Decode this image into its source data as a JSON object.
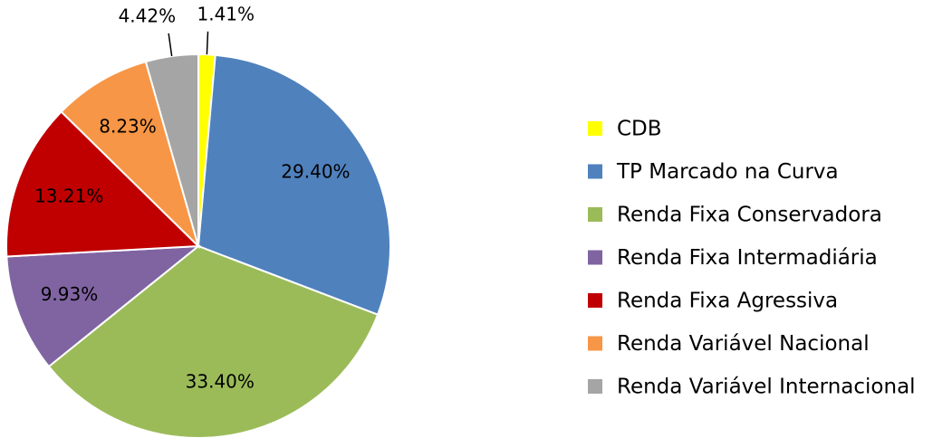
{
  "chart_data": {
    "type": "pie",
    "categories": [
      "CDB",
      "TP Marcado na Curva",
      "Renda Fixa Conservadora",
      "Renda Fixa Intermadiária",
      "Renda Fixa Agressiva",
      "Renda Variável Nacional",
      "Renda Variável Internacional"
    ],
    "values": [
      1.41,
      29.4,
      33.4,
      9.93,
      13.21,
      8.23,
      4.42
    ],
    "value_labels": [
      "1.41%",
      "29.40%",
      "33.40%",
      "9.93%",
      "13.21%",
      "8.23%",
      "4.42%"
    ],
    "colors": [
      "#ffff00",
      "#4f81bd",
      "#9bbb59",
      "#8064a2",
      "#c00000",
      "#f79646",
      "#a5a5a5"
    ],
    "legend": "right"
  }
}
